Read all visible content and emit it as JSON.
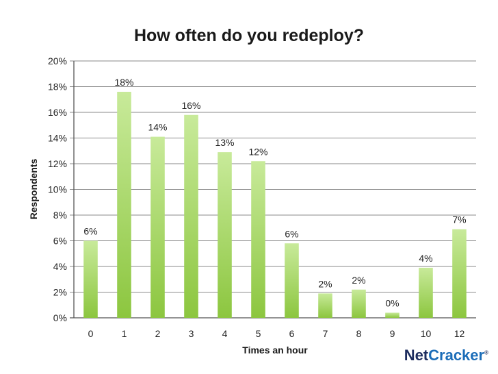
{
  "chart_data": {
    "type": "bar",
    "title": "How often do you redeploy?",
    "xlabel": "Times an hour",
    "ylabel": "Respondents",
    "categories": [
      "0",
      "1",
      "2",
      "3",
      "4",
      "5",
      "6",
      "7",
      "8",
      "9",
      "10",
      "12"
    ],
    "values": [
      6,
      17.6,
      14.1,
      15.8,
      12.9,
      12.2,
      5.8,
      1.9,
      2.2,
      0.4,
      3.9,
      6.9
    ],
    "data_labels": [
      "6%",
      "18%",
      "14%",
      "16%",
      "13%",
      "12%",
      "6%",
      "2%",
      "2%",
      "0%",
      "4%",
      "7%"
    ],
    "ylim": [
      0,
      20
    ],
    "yticks": [
      "0%",
      "2%",
      "4%",
      "6%",
      "8%",
      "10%",
      "12%",
      "14%",
      "16%",
      "18%",
      "20%"
    ],
    "grid": true,
    "legend": "none",
    "bar_color_top": "#c8ea9a",
    "bar_color_bottom": "#8cc63f"
  },
  "logo": {
    "part1": "Net",
    "part2": "Cracker",
    "mark": "®"
  }
}
